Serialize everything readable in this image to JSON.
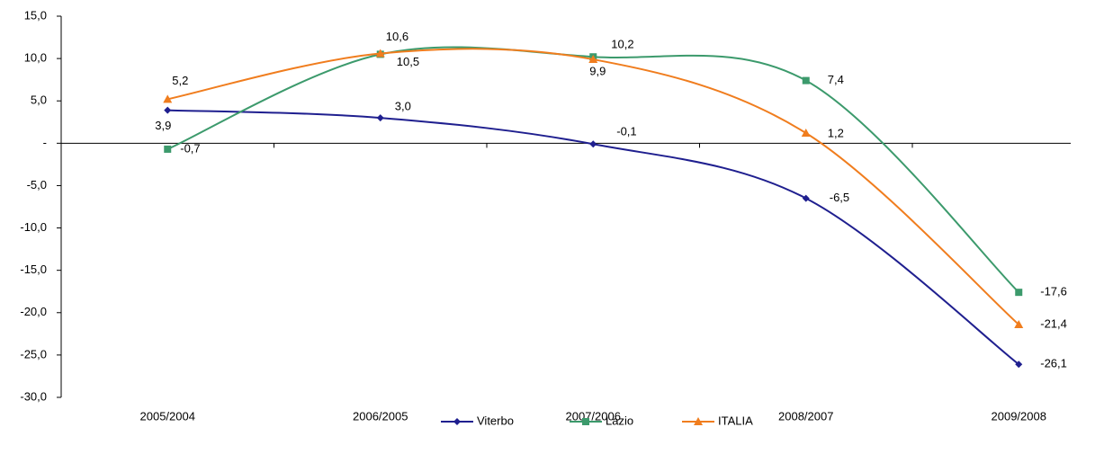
{
  "chart_data": {
    "type": "line",
    "categories": [
      "2005/2004",
      "2006/2005",
      "2007/2006",
      "2008/2007",
      "2009/2008"
    ],
    "series": [
      {
        "name": "Viterbo",
        "color": "#1f1f8f",
        "marker": "diamond",
        "values": [
          3.9,
          3.0,
          -0.1,
          -6.5,
          -26.1
        ],
        "value_labels": [
          "3,9",
          "3,0",
          "-0,1",
          "-6,5",
          "-26,1"
        ]
      },
      {
        "name": "Lazio",
        "color": "#3c9a6c",
        "marker": "square",
        "values": [
          -0.7,
          10.5,
          10.2,
          7.4,
          -17.6
        ],
        "value_labels": [
          "-0,7",
          "10,5",
          "10,2",
          "7,4",
          "-17,6"
        ]
      },
      {
        "name": "ITALIA",
        "color": "#f07d1e",
        "marker": "triangle",
        "values": [
          5.2,
          10.6,
          9.9,
          1.2,
          -21.4
        ],
        "value_labels": [
          "5,2",
          "10,6",
          "9,9",
          "1,2",
          "-21,4"
        ]
      }
    ],
    "ylim": [
      -30,
      15
    ],
    "yticks": [
      {
        "value": -30,
        "label": "-30,0"
      },
      {
        "value": -25,
        "label": "-25,0"
      },
      {
        "value": -20,
        "label": "-20,0"
      },
      {
        "value": -15,
        "label": "-15,0"
      },
      {
        "value": -10,
        "label": "-10,0"
      },
      {
        "value": -5,
        "label": "-5,0"
      },
      {
        "value": 0,
        "label": "-"
      },
      {
        "value": 5,
        "label": "5,0"
      },
      {
        "value": 10,
        "label": "10,0"
      },
      {
        "value": 15,
        "label": "15,0"
      }
    ],
    "grid": false,
    "smooth": true,
    "legend": "bottom"
  }
}
